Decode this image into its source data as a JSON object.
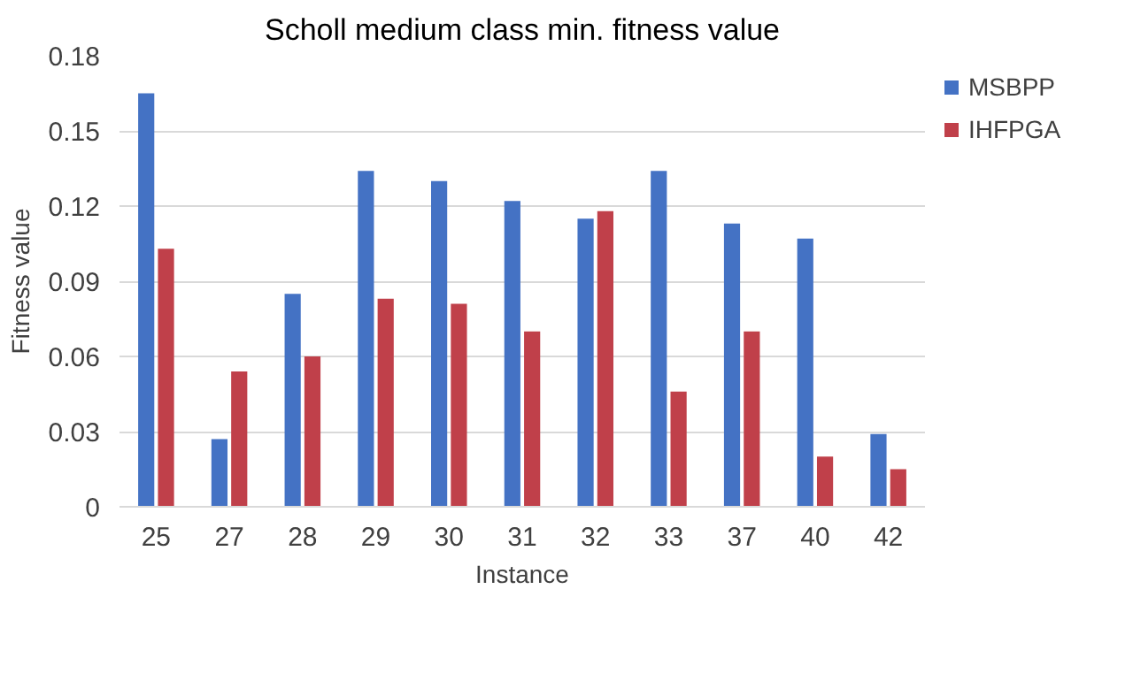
{
  "chart_data": {
    "type": "bar",
    "title": "Scholl medium class min. fitness value",
    "xlabel": "Instance",
    "ylabel": "Fitness value",
    "categories": [
      "25",
      "27",
      "28",
      "29",
      "30",
      "31",
      "32",
      "33",
      "37",
      "40",
      "42"
    ],
    "series": [
      {
        "name": "MSBPP",
        "color": "#4472c4",
        "values": [
          0.165,
          0.027,
          0.085,
          0.134,
          0.13,
          0.122,
          0.115,
          0.134,
          0.113,
          0.107,
          0.029
        ]
      },
      {
        "name": "IHFPGA",
        "color": "#c0404a",
        "values": [
          0.103,
          0.054,
          0.06,
          0.083,
          0.081,
          0.07,
          0.118,
          0.046,
          0.07,
          0.02,
          0.015
        ]
      }
    ],
    "ylim": [
      0,
      0.18
    ],
    "yticks": [
      0,
      0.03,
      0.06,
      0.09,
      0.12,
      0.15,
      0.18
    ],
    "grid": "y",
    "legend": "top right"
  }
}
